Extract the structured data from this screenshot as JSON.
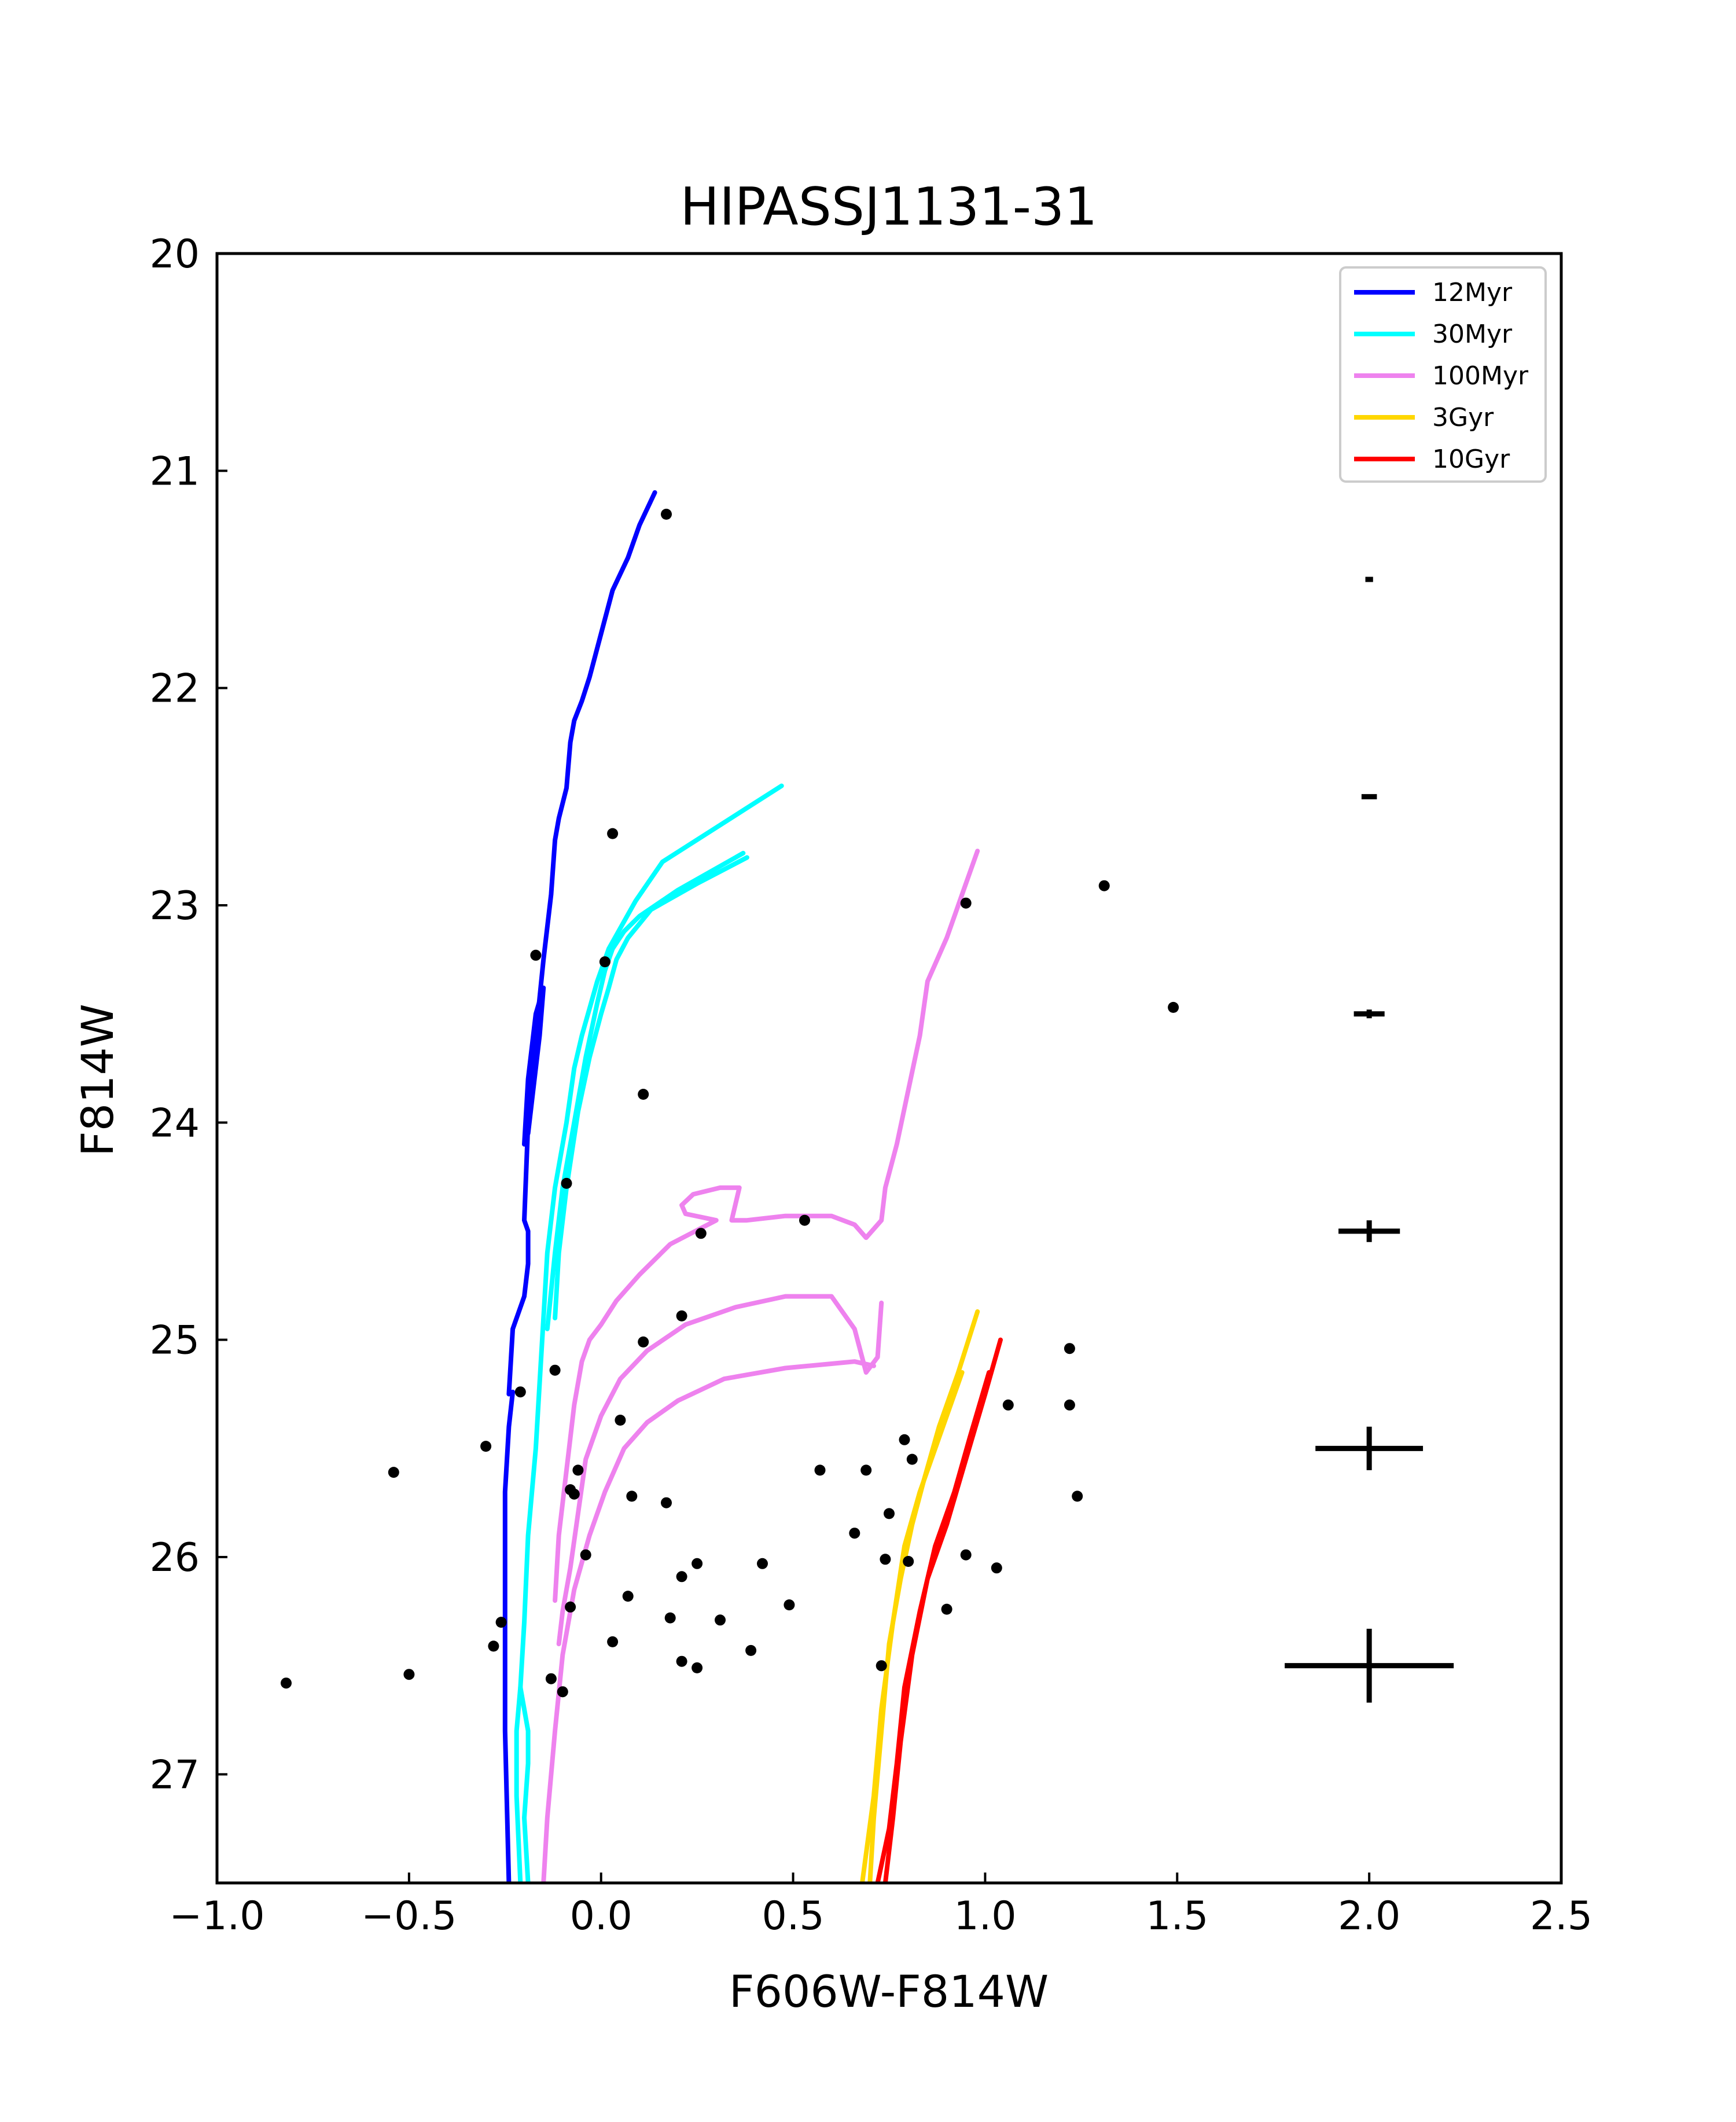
{
  "chart_data": {
    "type": "scatter",
    "title": "HIPASSJ1131-31",
    "xlabel": "F606W-F814W",
    "ylabel": "F814W",
    "xlim": [
      -1.0,
      2.5
    ],
    "ylim": [
      27.5,
      20.0
    ],
    "y_inverted": true,
    "grid": false,
    "legend_position": "top-right",
    "x_ticks": [
      -1.0,
      -0.5,
      0.0,
      0.5,
      1.0,
      1.5,
      2.0,
      2.5
    ],
    "x_tick_labels": [
      "−1.0",
      "−0.5",
      "0.0",
      "0.5",
      "1.0",
      "1.5",
      "2.0",
      "2.5"
    ],
    "y_ticks": [
      20,
      21,
      22,
      23,
      24,
      25,
      26,
      27
    ],
    "y_tick_labels": [
      "20",
      "21",
      "22",
      "23",
      "24",
      "25",
      "26",
      "27"
    ],
    "series": [
      {
        "name": "12Myr",
        "color": "#0000ff",
        "segments": [
          [
            [
              0.14,
              21.1
            ],
            [
              0.1,
              21.25
            ],
            [
              0.07,
              21.4
            ],
            [
              0.03,
              21.55
            ],
            [
              0.0,
              21.75
            ],
            [
              -0.03,
              21.95
            ],
            [
              -0.05,
              22.06
            ],
            [
              -0.07,
              22.15
            ],
            [
              -0.08,
              22.25
            ],
            [
              -0.09,
              22.46
            ],
            [
              -0.11,
              22.6
            ],
            [
              -0.12,
              22.7
            ],
            [
              -0.13,
              22.95
            ],
            [
              -0.15,
              23.25
            ],
            [
              -0.17,
              23.6
            ],
            [
              -0.19,
              24.0
            ],
            [
              -0.2,
              24.45
            ],
            [
              -0.19,
              24.5
            ],
            [
              -0.19,
              24.65
            ],
            [
              -0.2,
              24.8
            ],
            [
              -0.23,
              24.95
            ],
            [
              -0.24,
              25.25
            ],
            [
              -0.23,
              25.24
            ],
            [
              -0.24,
              25.4
            ],
            [
              -0.25,
              25.7
            ],
            [
              -0.25,
              26.2
            ],
            [
              -0.25,
              26.8
            ],
            [
              -0.24,
              27.5
            ]
          ],
          [
            [
              -0.2,
              24.1
            ],
            [
              -0.19,
              23.8
            ],
            [
              -0.17,
              23.5
            ],
            [
              -0.15,
              23.38
            ],
            [
              -0.16,
              23.6
            ],
            [
              -0.18,
              23.9
            ],
            [
              -0.19,
              24.05
            ]
          ]
        ]
      },
      {
        "name": "30Myr",
        "color": "#00ffff",
        "segments": [
          [
            [
              0.47,
              22.45
            ],
            [
              0.16,
              22.8
            ],
            [
              0.09,
              22.98
            ],
            [
              0.02,
              23.2
            ],
            [
              -0.01,
              23.35
            ],
            [
              -0.05,
              23.6
            ],
            [
              -0.07,
              23.75
            ],
            [
              -0.09,
              24.0
            ],
            [
              -0.12,
              24.3
            ],
            [
              -0.14,
              24.6
            ],
            [
              -0.15,
              24.9
            ],
            [
              -0.16,
              25.2
            ],
            [
              -0.17,
              25.5
            ],
            [
              -0.19,
              25.9
            ],
            [
              -0.2,
              26.3
            ],
            [
              -0.21,
              26.6
            ],
            [
              -0.19,
              26.8
            ],
            [
              -0.19,
              26.95
            ],
            [
              -0.2,
              27.2
            ],
            [
              -0.19,
              27.5
            ]
          ],
          [
            [
              0.37,
              22.76
            ],
            [
              0.2,
              22.93
            ],
            [
              0.1,
              23.05
            ],
            [
              0.06,
              23.12
            ],
            [
              0.03,
              23.2
            ],
            [
              0.01,
              23.3
            ],
            [
              -0.01,
              23.45
            ],
            [
              -0.04,
              23.7
            ],
            [
              -0.07,
              24.0
            ],
            [
              -0.1,
              24.3
            ],
            [
              -0.12,
              24.6
            ],
            [
              -0.14,
              24.95
            ]
          ],
          [
            [
              0.38,
              22.78
            ],
            [
              0.25,
              22.9
            ],
            [
              0.13,
              23.02
            ],
            [
              0.07,
              23.15
            ],
            [
              0.04,
              23.25
            ],
            [
              0.02,
              23.38
            ],
            [
              0.0,
              23.5
            ],
            [
              -0.03,
              23.7
            ],
            [
              -0.06,
              23.95
            ],
            [
              -0.09,
              24.3
            ],
            [
              -0.11,
              24.6
            ],
            [
              -0.12,
              24.9
            ]
          ],
          [
            [
              -0.21,
              26.6
            ],
            [
              -0.22,
              26.8
            ],
            [
              -0.22,
              27.1
            ],
            [
              -0.21,
              27.5
            ]
          ]
        ]
      },
      {
        "name": "100Myr",
        "color": "#ee82ee",
        "segments": [
          [
            [
              0.98,
              22.75
            ],
            [
              0.95,
              22.9
            ],
            [
              0.9,
              23.15
            ],
            [
              0.85,
              23.35
            ],
            [
              0.83,
              23.6
            ],
            [
              0.8,
              23.85
            ],
            [
              0.77,
              24.1
            ],
            [
              0.74,
              24.3
            ],
            [
              0.73,
              24.45
            ],
            [
              0.69,
              24.53
            ],
            [
              0.66,
              24.47
            ],
            [
              0.6,
              24.43
            ],
            [
              0.48,
              24.43
            ],
            [
              0.38,
              24.45
            ],
            [
              0.34,
              24.45
            ],
            [
              0.36,
              24.3
            ],
            [
              0.31,
              24.3
            ],
            [
              0.24,
              24.33
            ],
            [
              0.21,
              24.38
            ],
            [
              0.22,
              24.42
            ],
            [
              0.3,
              24.45
            ],
            [
              0.18,
              24.56
            ],
            [
              0.1,
              24.7
            ],
            [
              0.04,
              24.82
            ],
            [
              0.0,
              24.93
            ],
            [
              -0.03,
              25.0
            ],
            [
              -0.05,
              25.1
            ],
            [
              -0.07,
              25.3
            ],
            [
              -0.09,
              25.6
            ],
            [
              -0.11,
              25.9
            ],
            [
              -0.12,
              26.2
            ]
          ],
          [
            [
              0.73,
              24.83
            ],
            [
              0.72,
              25.08
            ],
            [
              0.69,
              25.15
            ],
            [
              0.66,
              24.95
            ],
            [
              0.6,
              24.8
            ],
            [
              0.48,
              24.8
            ],
            [
              0.35,
              24.85
            ],
            [
              0.22,
              24.93
            ],
            [
              0.12,
              25.05
            ],
            [
              0.05,
              25.18
            ],
            [
              0.0,
              25.35
            ],
            [
              -0.04,
              25.55
            ],
            [
              -0.06,
              25.8
            ],
            [
              -0.08,
              26.05
            ],
            [
              -0.1,
              26.25
            ],
            [
              -0.11,
              26.4
            ]
          ],
          [
            [
              0.71,
              25.12
            ],
            [
              0.66,
              25.1
            ],
            [
              0.6,
              25.11
            ],
            [
              0.48,
              25.13
            ],
            [
              0.32,
              25.18
            ],
            [
              0.2,
              25.28
            ],
            [
              0.12,
              25.38
            ],
            [
              0.06,
              25.5
            ],
            [
              0.01,
              25.7
            ],
            [
              -0.03,
              25.9
            ],
            [
              -0.07,
              26.15
            ],
            [
              -0.1,
              26.45
            ],
            [
              -0.12,
              26.8
            ],
            [
              -0.14,
              27.2
            ],
            [
              -0.15,
              27.5
            ]
          ]
        ]
      },
      {
        "name": "3Gyr",
        "color": "#ffd700",
        "segments": [
          [
            [
              0.98,
              24.87
            ],
            [
              0.93,
              25.15
            ],
            [
              0.88,
              25.4
            ],
            [
              0.84,
              25.65
            ],
            [
              0.81,
              25.85
            ],
            [
              0.78,
              26.1
            ],
            [
              0.75,
              26.4
            ],
            [
              0.73,
              26.8
            ],
            [
              0.71,
              27.2
            ],
            [
              0.7,
              27.5
            ]
          ],
          [
            [
              0.94,
              25.15
            ],
            [
              0.88,
              25.45
            ],
            [
              0.83,
              25.7
            ],
            [
              0.79,
              25.95
            ],
            [
              0.76,
              26.3
            ],
            [
              0.73,
              26.7
            ],
            [
              0.71,
              27.1
            ],
            [
              0.68,
              27.5
            ]
          ]
        ]
      },
      {
        "name": "10Gyr",
        "color": "#ff0000",
        "segments": [
          [
            [
              1.04,
              25.0
            ],
            [
              1.0,
              25.25
            ],
            [
              0.95,
              25.55
            ],
            [
              0.9,
              25.85
            ],
            [
              0.85,
              26.1
            ],
            [
              0.81,
              26.45
            ],
            [
              0.78,
              26.85
            ],
            [
              0.76,
              27.2
            ],
            [
              0.74,
              27.5
            ]
          ],
          [
            [
              1.01,
              25.15
            ],
            [
              0.96,
              25.45
            ],
            [
              0.92,
              25.7
            ],
            [
              0.87,
              25.95
            ],
            [
              0.83,
              26.25
            ],
            [
              0.79,
              26.6
            ],
            [
              0.77,
              26.95
            ],
            [
              0.75,
              27.25
            ],
            [
              0.72,
              27.5
            ]
          ]
        ]
      }
    ],
    "points": [
      [
        0.17,
        21.2
      ],
      [
        0.03,
        22.67
      ],
      [
        -0.17,
        23.23
      ],
      [
        0.01,
        23.26
      ],
      [
        0.95,
        22.99
      ],
      [
        1.31,
        22.91
      ],
      [
        1.49,
        23.47
      ],
      [
        0.11,
        23.87
      ],
      [
        -0.09,
        24.28
      ],
      [
        0.26,
        24.51
      ],
      [
        0.53,
        24.45
      ],
      [
        0.21,
        24.89
      ],
      [
        0.11,
        25.01
      ],
      [
        -0.12,
        25.14
      ],
      [
        -0.21,
        25.24
      ],
      [
        0.05,
        25.37
      ],
      [
        -0.3,
        25.49
      ],
      [
        -0.54,
        25.61
      ],
      [
        -0.06,
        25.6
      ],
      [
        -0.08,
        25.69
      ],
      [
        -0.07,
        25.71
      ],
      [
        0.08,
        25.72
      ],
      [
        0.17,
        25.75
      ],
      [
        0.57,
        25.6
      ],
      [
        0.69,
        25.6
      ],
      [
        0.79,
        25.46
      ],
      [
        0.81,
        25.55
      ],
      [
        0.75,
        25.8
      ],
      [
        0.66,
        25.89
      ],
      [
        1.22,
        25.04
      ],
      [
        1.06,
        25.3
      ],
      [
        1.22,
        25.3
      ],
      [
        1.24,
        25.72
      ],
      [
        -0.04,
        25.99
      ],
      [
        0.25,
        26.03
      ],
      [
        0.42,
        26.03
      ],
      [
        0.74,
        26.01
      ],
      [
        0.8,
        26.02
      ],
      [
        0.95,
        25.99
      ],
      [
        1.03,
        26.05
      ],
      [
        0.21,
        26.09
      ],
      [
        0.07,
        26.18
      ],
      [
        -0.08,
        26.23
      ],
      [
        0.49,
        26.22
      ],
      [
        0.9,
        26.24
      ],
      [
        -0.26,
        26.3
      ],
      [
        0.18,
        26.28
      ],
      [
        0.31,
        26.29
      ],
      [
        -0.28,
        26.41
      ],
      [
        0.03,
        26.39
      ],
      [
        0.39,
        26.43
      ],
      [
        0.21,
        26.48
      ],
      [
        0.25,
        26.51
      ],
      [
        0.73,
        26.5
      ],
      [
        -0.13,
        26.56
      ],
      [
        -0.1,
        26.62
      ],
      [
        -0.5,
        26.54
      ],
      [
        -0.82,
        26.58
      ]
    ],
    "error_bars": [
      {
        "x": 2.0,
        "y": 21.5,
        "xerr": 0.01,
        "yerr": 0.01
      },
      {
        "x": 2.0,
        "y": 22.5,
        "xerr": 0.02,
        "yerr": 0.01
      },
      {
        "x": 2.0,
        "y": 23.5,
        "xerr": 0.04,
        "yerr": 0.02
      },
      {
        "x": 2.0,
        "y": 24.5,
        "xerr": 0.08,
        "yerr": 0.05
      },
      {
        "x": 2.0,
        "y": 25.5,
        "xerr": 0.14,
        "yerr": 0.1
      },
      {
        "x": 2.0,
        "y": 26.5,
        "xerr": 0.22,
        "yerr": 0.17
      }
    ]
  }
}
